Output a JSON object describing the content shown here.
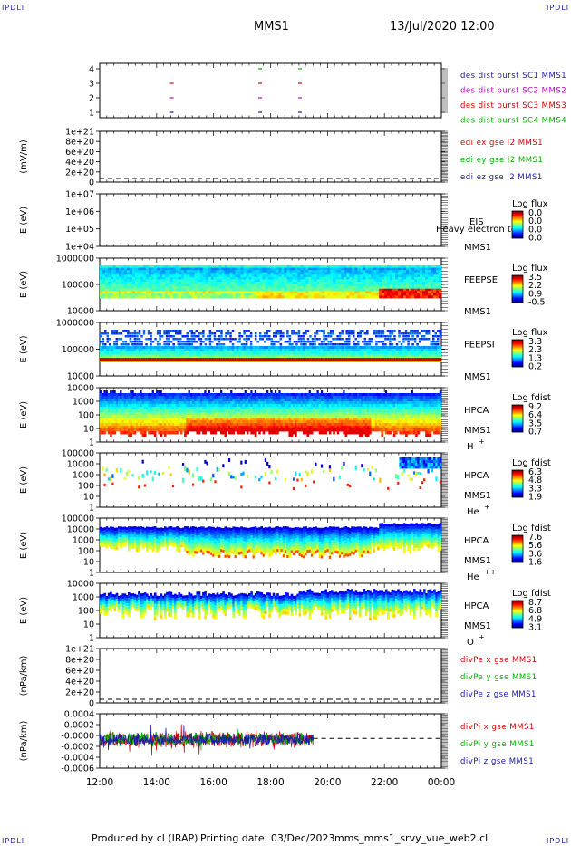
{
  "header": {
    "corner_label": "IPDLI",
    "title": "MMS1",
    "datetime": "13/Jul/2020 12:00"
  },
  "footer": {
    "produced_by": "Produced by cl (IRAP)",
    "printing_date": "Printing date: 03/Dec/2023",
    "script_name": "mms_mms1_srvy_vue_web2.cl"
  },
  "time_axis": {
    "ticks": [
      "12:00",
      "14:00",
      "16:00",
      "18:00",
      "20:00",
      "22:00",
      "00:00"
    ]
  },
  "colors": {
    "frame": "#000000",
    "sc1": "#1a1aa8",
    "sc2": "#c000c0",
    "sc3": "#d00000",
    "sc4": "#00b000"
  },
  "chart_data": [
    {
      "type": "scatter",
      "panel": "burst",
      "yticks": [
        "4",
        "3",
        "2",
        "1"
      ],
      "series": [
        {
          "name": "des dist burst SC1 MMS1",
          "color": "#1a1aa8",
          "y": 1,
          "x": [
            "14:32",
            "17:38",
            "19:02"
          ]
        },
        {
          "name": "des dist burst SC2 MMS2",
          "color": "#c000c0",
          "y": 2,
          "x": [
            "14:32",
            "17:38",
            "19:02"
          ]
        },
        {
          "name": "des dist burst SC3 MMS3",
          "color": "#d00000",
          "y": 3,
          "x": [
            "14:32",
            "17:38",
            "19:02"
          ]
        },
        {
          "name": "des dist burst SC4 MMS4",
          "color": "#00b000",
          "y": 4,
          "x": [
            "17:38",
            "19:02"
          ]
        }
      ]
    },
    {
      "type": "line",
      "panel": "edi",
      "ylabel": "(mV/m)",
      "yticks": [
        "1e+21",
        "8e+20",
        "6e+20",
        "4e+20",
        "2e+20",
        "0"
      ],
      "legend": [
        {
          "name": "edi ex gse l2 MMS1",
          "color": "#d00000"
        },
        {
          "name": "edi ey gse l2 MMS1",
          "color": "#00b000"
        },
        {
          "name": "edi ez gse l2 MMS1",
          "color": "#1a1aa8"
        }
      ],
      "zero_line": true
    },
    {
      "type": "heatmap",
      "panel": "eis",
      "ylabel": "E (eV)",
      "yticks": [
        "1e+07",
        "1e+06",
        "1e+05",
        "1e+04"
      ],
      "instrument": "EIS",
      "species": "MMS1",
      "overlay_note": "Heavy electron to",
      "colorbar_title": "Log flux",
      "colorbar_ticks": [
        "0.0",
        "0.0",
        "0.0",
        "0.0"
      ]
    },
    {
      "type": "heatmap",
      "panel": "feeps_e",
      "ylabel": "E (eV)",
      "yticks": [
        "1000000",
        "100000",
        "10000"
      ],
      "instrument": "FEEPSE",
      "species": "MMS1",
      "colorbar_title": "Log flux",
      "colorbar_ticks": [
        "3.5",
        "2.2",
        "0.9",
        "-0.5"
      ]
    },
    {
      "type": "heatmap",
      "panel": "feeps_i",
      "ylabel": "E (eV)",
      "yticks": [
        "1000000",
        "100000",
        "10000"
      ],
      "instrument": "FEEPSI",
      "species": "MMS1",
      "colorbar_title": "Log flux",
      "colorbar_ticks": [
        "3.3",
        "2.3",
        "1.3",
        "0.2"
      ]
    },
    {
      "type": "heatmap",
      "panel": "hpca_h",
      "ylabel": "E (eV)",
      "yticks": [
        "10000",
        "1000",
        "100",
        "10",
        "1"
      ],
      "instrument": "HPCA",
      "species": "MMS1",
      "ion": "H",
      "ion_charge": "+",
      "colorbar_title": "Log fdist",
      "colorbar_ticks": [
        "9.2",
        "6.4",
        "3.5",
        "0.7"
      ]
    },
    {
      "type": "heatmap",
      "panel": "hpca_he",
      "ylabel": "E (eV)",
      "yticks": [
        "100000",
        "10000",
        "1000",
        "100",
        "10",
        "1"
      ],
      "instrument": "HPCA",
      "species": "MMS1",
      "ion": "He",
      "ion_charge": "+",
      "colorbar_title": "Log fdist",
      "colorbar_ticks": [
        "6.3",
        "4.8",
        "3.3",
        "1.9"
      ]
    },
    {
      "type": "heatmap",
      "panel": "hpca_hepp",
      "ylabel": "E (eV)",
      "yticks": [
        "100000",
        "10000",
        "1000",
        "100",
        "10",
        "1"
      ],
      "instrument": "HPCA",
      "species": "MMS1",
      "ion": "He",
      "ion_charge": "++",
      "colorbar_title": "Log fdist",
      "colorbar_ticks": [
        "7.6",
        "5.6",
        "3.6",
        "1.6"
      ]
    },
    {
      "type": "heatmap",
      "panel": "hpca_o",
      "ylabel": "E (eV)",
      "yticks": [
        "10000",
        "1000",
        "100",
        "10",
        "1"
      ],
      "instrument": "HPCA",
      "species": "MMS1",
      "ion": "O",
      "ion_charge": "+",
      "colorbar_title": "Log fdist",
      "colorbar_ticks": [
        "8.7",
        "6.8",
        "4.9",
        "3.1"
      ]
    },
    {
      "type": "line",
      "panel": "divpe",
      "ylabel": "(nPa/km)",
      "yticks": [
        "1e+21",
        "8e+20",
        "6e+20",
        "4e+20",
        "2e+20",
        "0"
      ],
      "legend": [
        {
          "name": "divPe x gse MMS1",
          "color": "#d00000"
        },
        {
          "name": "divPe y gse MMS1",
          "color": "#00b000"
        },
        {
          "name": "divPe z gse MMS1",
          "color": "#1a1aa8"
        }
      ],
      "zero_line": true
    },
    {
      "type": "line",
      "panel": "divpi",
      "ylabel": "(nPa/km)",
      "yticks": [
        "0.0004",
        "0.0002",
        "-0.0000",
        "-0.0002",
        "-0.0004",
        "-0.0006"
      ],
      "ylim": [
        -0.0006,
        0.0005
      ],
      "x_end": "19:30",
      "legend": [
        {
          "name": "divPi x gse MMS1",
          "color": "#d00000"
        },
        {
          "name": "divPi y gse MMS1",
          "color": "#00b000"
        },
        {
          "name": "divPi z gse MMS1",
          "color": "#1a1aa8"
        }
      ],
      "zero_line": true
    }
  ]
}
